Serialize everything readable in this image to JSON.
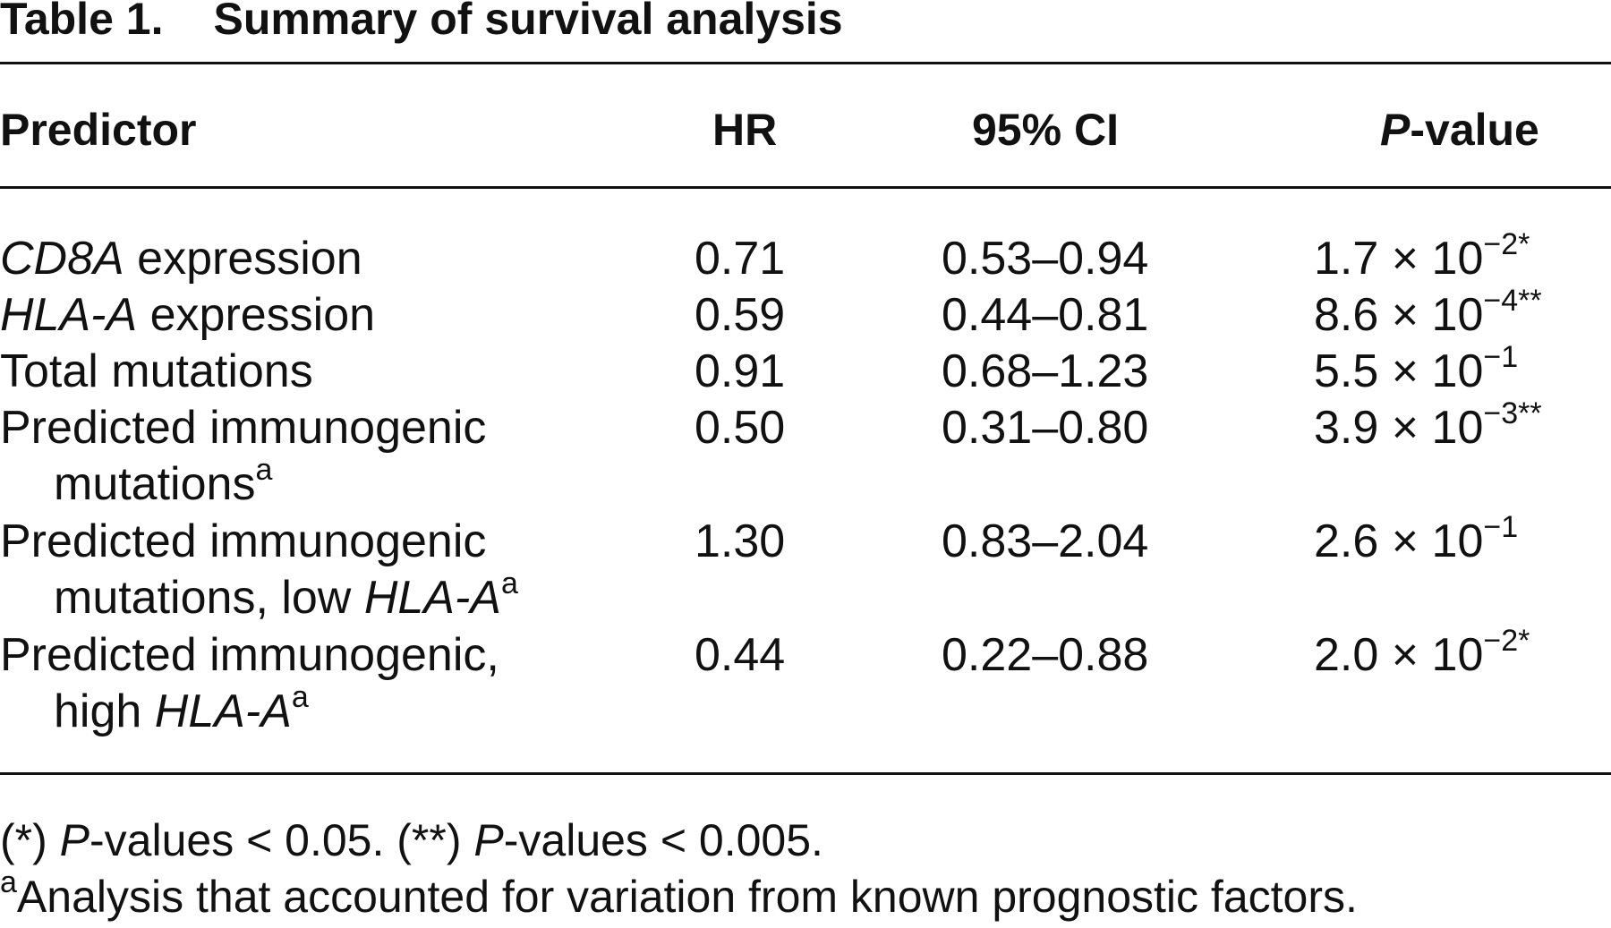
{
  "table": {
    "title_label": "Table 1.",
    "title_text": "Summary of survival analysis",
    "headers": {
      "predictor": "Predictor",
      "hr": "HR",
      "ci": "95% CI",
      "p_italic": "P",
      "p_rest": "-value"
    },
    "rows": [
      {
        "pred_italic": "CD8A",
        "pred_text": " expression",
        "hr": "0.71",
        "ci": "0.53–0.94",
        "p_base": "1.7 × 10",
        "p_exp": "−2",
        "p_sig": "*"
      },
      {
        "pred_italic": "HLA-A",
        "pred_text": " expression",
        "hr": "0.59",
        "ci": "0.44–0.81",
        "p_base": "8.6 × 10",
        "p_exp": "−4",
        "p_sig": "**"
      },
      {
        "pred_text": "Total mutations",
        "hr": "0.91",
        "ci": "0.68–1.23",
        "p_base": "5.5 × 10",
        "p_exp": "−1",
        "p_sig": ""
      },
      {
        "pred_line1": "Predicted immunogenic",
        "pred_line2": "mutations",
        "pred_line2_sup": "a",
        "hr": "0.50",
        "ci": "0.31–0.80",
        "p_base": "3.9 × 10",
        "p_exp": "−3",
        "p_sig": "**"
      },
      {
        "pred_line1": "Predicted immunogenic",
        "pred_line2": "mutations, low ",
        "pred_line2_italic": "HLA-A",
        "pred_line2_sup": "a",
        "hr": "1.30",
        "ci": "0.83–2.04",
        "p_base": "2.6 × 10",
        "p_exp": "−1",
        "p_sig": ""
      },
      {
        "pred_line1": "Predicted immunogenic,",
        "pred_line2": "high ",
        "pred_line2_italic": "HLA-A",
        "pred_line2_sup": "a",
        "hr": "0.44",
        "ci": "0.22–0.88",
        "p_base": "2.0 × 10",
        "p_exp": "−2",
        "p_sig": "*"
      }
    ],
    "footnotes": {
      "sig_a_prefix": "(*) ",
      "sig_a_italic": "P",
      "sig_a_rest": "-values < 0.05. ",
      "sig_b_prefix": "(**) ",
      "sig_b_italic": "P",
      "sig_b_rest": "-values < 0.005.",
      "a_marker": "a",
      "a_text": "Analysis that accounted for variation from known prognostic factors."
    }
  }
}
